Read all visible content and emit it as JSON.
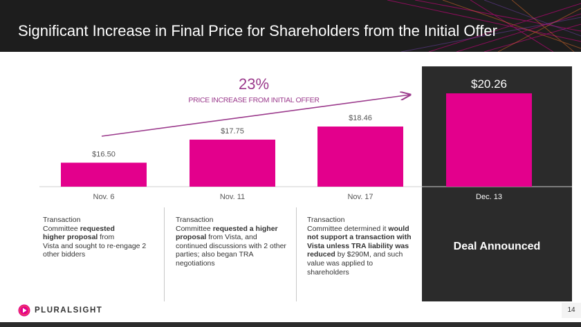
{
  "slide": {
    "title": "Significant Increase in Final Price for Shareholders from the Initial Offer",
    "page_number": "14"
  },
  "annotation": {
    "percent": "23%",
    "caption": "PRICE INCREASE FROM INITIAL OFFER"
  },
  "columns": [
    {
      "lines": [
        [
          {
            "t": "Transaction"
          }
        ],
        [
          {
            "t": "Committee "
          },
          {
            "t": "requested",
            "b": true
          }
        ],
        [
          {
            "t": "higher proposal",
            "b": true
          },
          {
            "t": " from"
          }
        ],
        [
          {
            "t": "Vista and sought  to re-engage 2"
          }
        ],
        [
          {
            "t": "other bidders"
          }
        ]
      ]
    },
    {
      "lines": [
        [
          {
            "t": "Transaction"
          }
        ],
        [
          {
            "t": "Committee "
          },
          {
            "t": "requested a higher",
            "b": true
          }
        ],
        [
          {
            "t": "proposal",
            "b": true
          },
          {
            "t": " from Vista, and"
          }
        ],
        [
          {
            "t": "continued discussions with 2 other"
          }
        ],
        [
          {
            "t": "parties; also began TRA"
          }
        ],
        [
          {
            "t": "negotiations"
          }
        ]
      ]
    },
    {
      "lines": [
        [
          {
            "t": "Transaction"
          }
        ],
        [
          {
            "t": "Committee determined it "
          },
          {
            "t": "would",
            "b": true
          }
        ],
        [
          {
            "t": "not support a transaction with",
            "b": true
          }
        ],
        [
          {
            "t": "Vista unless TRA liability was",
            "b": true
          }
        ],
        [
          {
            "t": "reduced",
            "b": true
          },
          {
            "t": " by $290M, and such"
          }
        ],
        [
          {
            "t": "value was applied to"
          }
        ],
        [
          {
            "t": "shareholders"
          }
        ]
      ]
    }
  ],
  "deal_label": "Deal Announced",
  "brand": {
    "name": "PLURALSIGHT"
  },
  "colors": {
    "bar": "#e3008c",
    "arrow": "#9b3a8c",
    "header_bg": "#1d1d1d",
    "panel_bg": "#2b2b2b"
  },
  "chart_data": {
    "type": "bar",
    "categories": [
      "Nov. 6",
      "Nov. 11",
      "Nov. 17",
      "Dec. 13"
    ],
    "values": [
      16.5,
      17.75,
      18.46,
      20.26
    ],
    "value_labels": [
      "$16.50",
      "$17.75",
      "$18.46",
      "$20.26"
    ],
    "baseline": 15.2,
    "ylim_max": 20.26,
    "highlight_last": true,
    "legend": "none",
    "grid": false
  }
}
